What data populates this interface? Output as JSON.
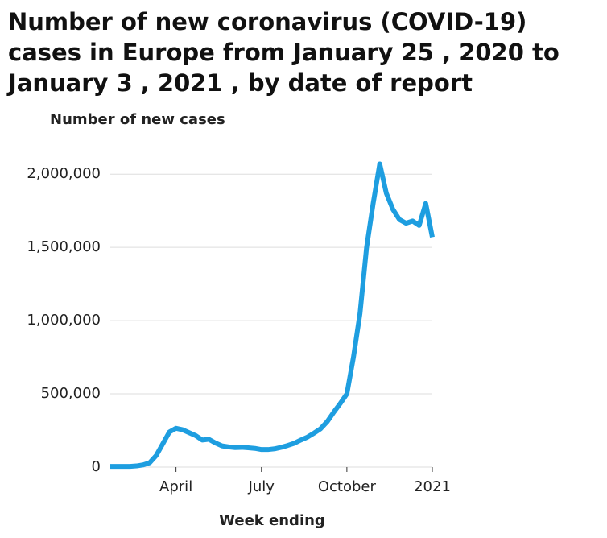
{
  "chart_data": {
    "type": "line",
    "title": "Number of new coronavirus (COVID-19) cases in Europe from January 25 , 2020 to January 3 , 2021 , by date of report",
    "ylabel": "Number of new cases",
    "xlabel": "Week ending",
    "categories": [
      null,
      null,
      null,
      null,
      null,
      null,
      null,
      null,
      null,
      null,
      "April",
      null,
      null,
      null,
      null,
      null,
      null,
      null,
      null,
      null,
      null,
      null,
      null,
      "July",
      null,
      null,
      null,
      null,
      null,
      null,
      null,
      null,
      null,
      null,
      null,
      null,
      "October",
      null,
      null,
      null,
      null,
      null,
      null,
      null,
      null,
      null,
      null,
      null,
      null,
      "2021"
    ],
    "series": [
      {
        "name": "Number of new cases",
        "color": "#1e9ee0",
        "values": [
          5000,
          5000,
          5000,
          5000,
          8000,
          15000,
          30000,
          80000,
          160000,
          240000,
          265000,
          255000,
          235000,
          215000,
          185000,
          190000,
          165000,
          145000,
          138000,
          133000,
          135000,
          132000,
          128000,
          120000,
          120000,
          125000,
          135000,
          148000,
          163000,
          185000,
          205000,
          232000,
          262000,
          310000,
          375000,
          435000,
          500000,
          750000,
          1050000,
          1500000,
          1800000,
          2070000,
          1870000,
          1760000,
          1690000,
          1665000,
          1680000,
          1650000,
          1800000,
          1570000
        ]
      }
    ],
    "ylim": [
      0,
      2100000
    ],
    "yticks": [
      0,
      {
        "value": 500000,
        "label": "500,000"
      },
      {
        "value": 1000000,
        "label": "1,000,000"
      },
      {
        "value": 1500000,
        "label": "1,500,000"
      },
      {
        "value": 2000000,
        "label": "2,000,000"
      }
    ],
    "grid": true
  }
}
